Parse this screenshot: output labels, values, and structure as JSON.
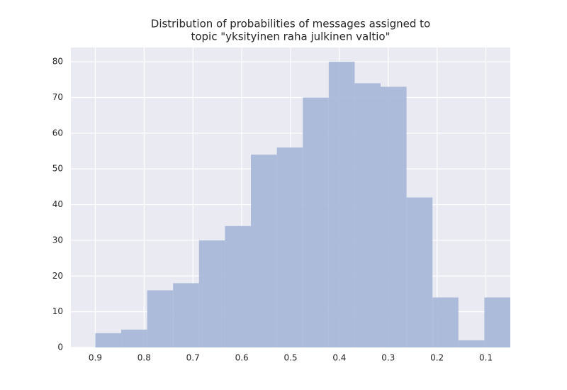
{
  "chart_data": {
    "type": "histogram",
    "title": [
      "Distribution of probabilities of messages assigned to",
      "topic \"yksityinen raha julkinen valtio\""
    ],
    "bins": [
      0.05,
      0.103125,
      0.15625,
      0.209375,
      0.2625,
      0.315625,
      0.36875,
      0.421875,
      0.475,
      0.528125,
      0.58125,
      0.634375,
      0.6875,
      0.740625,
      0.79375,
      0.846875,
      0.9
    ],
    "values": [
      14,
      2,
      14,
      42,
      73,
      74,
      80,
      70,
      56,
      54,
      34,
      30,
      18,
      16,
      5,
      4
    ],
    "color": "#a9b8d8",
    "xlim": [
      0.95,
      0.05
    ],
    "xticks": [
      0.9,
      0.8,
      0.7,
      0.6,
      0.5,
      0.4,
      0.3,
      0.2,
      0.1
    ],
    "ylim": [
      0,
      84
    ],
    "yticks": [
      0,
      10,
      20,
      30,
      40,
      50,
      60,
      70,
      80
    ],
    "grid": true
  }
}
